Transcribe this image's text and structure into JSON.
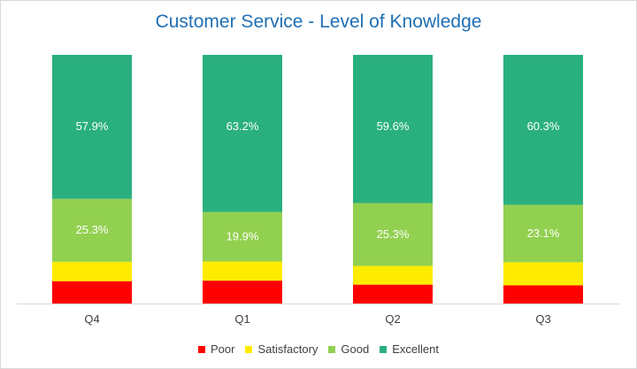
{
  "chart_data": {
    "type": "bar",
    "stacked": true,
    "title": "Customer Service - Level of Knowledge",
    "categories": [
      "Q4",
      "Q1",
      "Q2",
      "Q3"
    ],
    "series": [
      {
        "name": "Poor",
        "color": "#ff0000",
        "values": [
          9.0,
          9.2,
          7.6,
          7.3
        ]
      },
      {
        "name": "Satisfactory",
        "color": "#ffeb00",
        "values": [
          7.8,
          7.7,
          7.5,
          9.3
        ]
      },
      {
        "name": "Good",
        "color": "#92d050",
        "values": [
          25.3,
          19.9,
          25.3,
          23.1
        ]
      },
      {
        "name": "Excellent",
        "color": "#2ab07f",
        "values": [
          57.9,
          63.2,
          59.6,
          60.3
        ]
      }
    ],
    "data_labels": [
      {
        "series": "Good",
        "labels": [
          "25.3%",
          "19.9%",
          "25.3%",
          "23.1%"
        ]
      },
      {
        "series": "Excellent",
        "labels": [
          "57.9%",
          "63.2%",
          "59.6%",
          "60.3%"
        ]
      }
    ],
    "ylim": [
      0,
      100
    ],
    "grid": false,
    "legend_position": "bottom"
  }
}
